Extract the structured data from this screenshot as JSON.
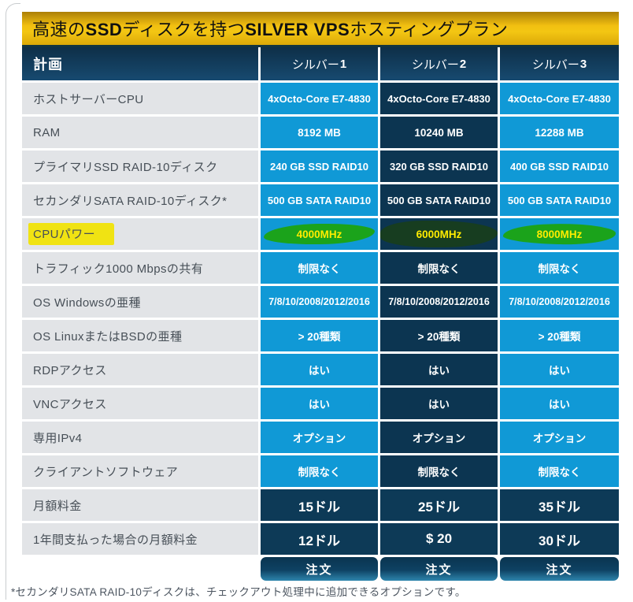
{
  "page": {
    "banner_parts": [
      {
        "text": "高速の",
        "bold": false
      },
      {
        "text": "SSD",
        "bold": true
      },
      {
        "text": "ディスクを持つ",
        "bold": false
      },
      {
        "text": "SILVER VPS",
        "bold": true
      },
      {
        "text": "ホスティングプラン",
        "bold": false
      }
    ],
    "footnote": "*セカンダリSATA RAID-10ディスクは、チェックアウト処理中に追加できるオプションです。"
  },
  "table": {
    "header": {
      "plan_column": "計画",
      "plans": [
        {
          "name": "シルバー",
          "number": "1"
        },
        {
          "name": "シルバー",
          "number": "2"
        },
        {
          "name": "シルバー",
          "number": "3"
        }
      ]
    },
    "rows": [
      {
        "label": "ホストサーバーCPU",
        "values": [
          "4xOcto-Core E7-4830",
          "4xOcto-Core E7-4830",
          "4xOcto-Core E7-4830"
        ],
        "style": "small"
      },
      {
        "label": "RAM",
        "values": [
          "8192 MB",
          "10240 MB",
          "12288 MB"
        ],
        "style": ""
      },
      {
        "label": "プライマリSSD RAID-10ディスク",
        "values": [
          "240 GB SSD RAID10",
          "320 GB SSD RAID10",
          "400 GB SSD RAID10"
        ],
        "style": "small"
      },
      {
        "label": "セカンダリSATA RAID-10ディスク*",
        "values": [
          "500 GB SATA RAID10",
          "500 GB SATA RAID10",
          "500 GB SATA RAID10"
        ],
        "style": "small"
      },
      {
        "label": "CPUパワー",
        "values": [
          "4000MHz",
          "6000MHz",
          "8000MHz"
        ],
        "style": "",
        "highlight": true
      },
      {
        "label": "トラフィック1000 Mbpsの共有",
        "values": [
          "制限なく",
          "制限なく",
          "制限なく"
        ],
        "style": ""
      },
      {
        "label": "OS Windowsの亜種",
        "values": [
          "7/8/10/2008/2012/2016",
          "7/8/10/2008/2012/2016",
          "7/8/10/2008/2012/2016"
        ],
        "style": "small-bold"
      },
      {
        "label": "OS LinuxまたはBSDの亜種",
        "values": [
          "> 20種類",
          "> 20種類",
          "> 20種類"
        ],
        "style": ""
      },
      {
        "label": "RDPアクセス",
        "values": [
          "はい",
          "はい",
          "はい"
        ],
        "style": ""
      },
      {
        "label": "VNCアクセス",
        "values": [
          "はい",
          "はい",
          "はい"
        ],
        "style": ""
      },
      {
        "label": "専用IPv4",
        "values": [
          "オプション",
          "オプション",
          "オプション"
        ],
        "style": "bold"
      },
      {
        "label": "クライアントソフトウェア",
        "values": [
          "制限なく",
          "制限なく",
          "制限なく"
        ],
        "style": ""
      },
      {
        "label": "月額料金",
        "values": [
          "15ドル",
          "25ドル",
          "35ドル"
        ],
        "style": "price"
      },
      {
        "label": "1年間支払った場合の月額料金",
        "values": [
          "12ドル",
          "$ 20",
          "30ドル"
        ],
        "style": "price"
      }
    ],
    "order_button": "注文"
  },
  "annotations": {
    "label_highlight_color": "#f0e313",
    "marker_green_light": "#1ba31b",
    "marker_green_dark": "#173d20",
    "highlight_text_color": "#ffec00"
  },
  "colors": {
    "banner_top": "#ab7f06",
    "banner_mid": "#f2c011",
    "banner_mid2": "#f3c613",
    "banner_bottom": "#dca908",
    "header_navy_top": "#0e2f48",
    "header_navy_bottom": "#174a70",
    "cell_blue": "#1099d6",
    "cell_navy": "#0c3551",
    "price_navy": "#0d3a57",
    "label_bg": "#e2e4e7"
  }
}
